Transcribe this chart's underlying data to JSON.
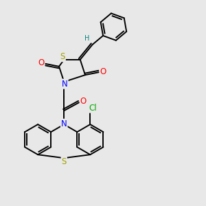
{
  "bg_color": "#e8e8e8",
  "atom_colors": {
    "S": "#a0a000",
    "N": "#0000ff",
    "O": "#ff0000",
    "Cl": "#00aa00",
    "H": "#008080",
    "C": "#000000"
  },
  "bond_color": "#000000",
  "bond_width": 1.4,
  "font_size_atom": 8.5,
  "font_size_small": 7.0
}
